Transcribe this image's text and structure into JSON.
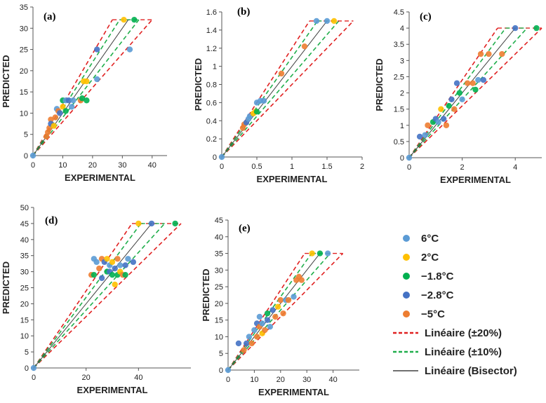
{
  "legend": {
    "entries": [
      {
        "label": "6°C",
        "kind": "dot",
        "color": "#5b9bd5"
      },
      {
        "label": "2°C",
        "kind": "dot",
        "color": "#ffc000"
      },
      {
        "label": "−1.8°C",
        "kind": "dot",
        "color": "#00b050"
      },
      {
        "label": "−2.8°C",
        "kind": "dot",
        "color": "#4472c4"
      },
      {
        "label": "−5°C",
        "kind": "dot",
        "color": "#ed7d31"
      },
      {
        "label": "Linéaire (±20%)",
        "kind": "dash",
        "color": "#e02020"
      },
      {
        "label": "Linéaire (±10%)",
        "kind": "dash",
        "color": "#1fae4b"
      },
      {
        "label": "Linéaire (Bisector)",
        "kind": "solid",
        "color": "#404040"
      }
    ]
  },
  "chart_data": [
    {
      "id": "a",
      "type": "scatter",
      "panel_label": "(a)",
      "xlabel": "EXPERIMENTAL",
      "ylabel": "PREDICTED",
      "xlim": [
        0,
        45
      ],
      "ylim": [
        0,
        35
      ],
      "xticks": [
        0,
        10,
        20,
        30,
        40
      ],
      "yticks": [
        0,
        5,
        10,
        15,
        20,
        25,
        30,
        35
      ],
      "xtick_labels": [
        "0",
        "10",
        "20",
        "30",
        "40"
      ],
      "ytick_labels": [
        "0",
        "5",
        "10",
        "15",
        "20",
        "25",
        "30",
        "35"
      ],
      "line_end": 32,
      "points": [
        {
          "x": 0,
          "y": 0,
          "series": "6°C"
        },
        {
          "x": 4.5,
          "y": 4.5,
          "series": "-5°C"
        },
        {
          "x": 5,
          "y": 5.5,
          "series": "-5°C"
        },
        {
          "x": 5.5,
          "y": 6.5,
          "series": "-5°C"
        },
        {
          "x": 6,
          "y": 8.5,
          "series": "-5°C"
        },
        {
          "x": 6,
          "y": 7.5,
          "series": "-2.8°C"
        },
        {
          "x": 7,
          "y": 7,
          "series": "2°C"
        },
        {
          "x": 7.5,
          "y": 9,
          "series": "-5°C"
        },
        {
          "x": 8,
          "y": 11,
          "series": "6°C"
        },
        {
          "x": 8.5,
          "y": 10.5,
          "series": "-5°C"
        },
        {
          "x": 9,
          "y": 10,
          "series": "-2.8°C"
        },
        {
          "x": 10,
          "y": 13,
          "series": "-1.8°C"
        },
        {
          "x": 10,
          "y": 11.5,
          "series": "2°C"
        },
        {
          "x": 11,
          "y": 13,
          "series": "6°C"
        },
        {
          "x": 11,
          "y": 10.5,
          "series": "-1.8°C"
        },
        {
          "x": 12,
          "y": 13,
          "series": "-2.8°C"
        },
        {
          "x": 13,
          "y": 11.5,
          "series": "6°C"
        },
        {
          "x": 13.5,
          "y": 13,
          "series": "6°C"
        },
        {
          "x": 16,
          "y": 13,
          "series": "-5°C"
        },
        {
          "x": 16.5,
          "y": 13.5,
          "series": "-1.8°C"
        },
        {
          "x": 17,
          "y": 17.5,
          "series": "2°C"
        },
        {
          "x": 18,
          "y": 17.5,
          "series": "2°C"
        },
        {
          "x": 18,
          "y": 13,
          "series": "-1.8°C"
        },
        {
          "x": 21.5,
          "y": 18,
          "series": "6°C"
        },
        {
          "x": 21.5,
          "y": 25,
          "series": "-2.8°C"
        },
        {
          "x": 32.5,
          "y": 25,
          "series": "6°C"
        },
        {
          "x": 30.5,
          "y": 32,
          "series": "2°C"
        },
        {
          "x": 34,
          "y": 32,
          "series": "-1.8°C"
        }
      ]
    },
    {
      "id": "b",
      "type": "scatter",
      "panel_label": "(b)",
      "xlabel": "EXPERIMENTAL",
      "ylabel": "PREDICTED",
      "xlim": [
        0,
        2
      ],
      "ylim": [
        0,
        1.6
      ],
      "xticks": [
        0,
        0.5,
        1,
        1.5,
        2
      ],
      "yticks": [
        0,
        0.2,
        0.4,
        0.6,
        0.8,
        1,
        1.2,
        1.4,
        1.6
      ],
      "xtick_labels": [
        "0",
        "0.5",
        "1",
        "1.5",
        "2"
      ],
      "ytick_labels": [
        "0",
        "0.2",
        "0.4",
        "0.6",
        "0.8",
        "1",
        "1.2",
        "1.4",
        "1.6"
      ],
      "line_end": 1.5,
      "points": [
        {
          "x": 0,
          "y": 0,
          "series": "6°C"
        },
        {
          "x": 0.3,
          "y": 0.32,
          "series": "-5°C"
        },
        {
          "x": 0.32,
          "y": 0.36,
          "series": "-5°C"
        },
        {
          "x": 0.35,
          "y": 0.38,
          "series": "-2.8°C"
        },
        {
          "x": 0.38,
          "y": 0.42,
          "series": "6°C"
        },
        {
          "x": 0.4,
          "y": 0.45,
          "series": "6°C"
        },
        {
          "x": 0.45,
          "y": 0.48,
          "series": "2°C"
        },
        {
          "x": 0.48,
          "y": 0.5,
          "series": "2°C"
        },
        {
          "x": 0.5,
          "y": 0.5,
          "series": "-1.8°C"
        },
        {
          "x": 0.5,
          "y": 0.6,
          "series": "6°C"
        },
        {
          "x": 0.55,
          "y": 0.62,
          "series": "6°C"
        },
        {
          "x": 0.6,
          "y": 0.62,
          "series": "6°C"
        },
        {
          "x": 0.85,
          "y": 0.92,
          "series": "-5°C"
        },
        {
          "x": 1.18,
          "y": 1.22,
          "series": "-5°C"
        },
        {
          "x": 1.35,
          "y": 1.5,
          "series": "6°C"
        },
        {
          "x": 1.5,
          "y": 1.5,
          "series": "6°C"
        },
        {
          "x": 1.6,
          "y": 1.5,
          "series": "2°C"
        }
      ]
    },
    {
      "id": "c",
      "type": "scatter",
      "panel_label": "(c)",
      "xlabel": "EXPERIMENTAL",
      "ylabel": "PREDICTED",
      "xlim": [
        0,
        5
      ],
      "ylim": [
        0,
        4.5
      ],
      "xticks": [
        0,
        2,
        4
      ],
      "yticks": [
        0,
        0.5,
        1,
        1.5,
        2,
        2.5,
        3,
        3.5,
        4,
        4.5
      ],
      "xtick_labels": [
        "0",
        "2",
        "4"
      ],
      "ytick_labels": [
        "0",
        "0.5",
        "1",
        "1.5",
        "2",
        "2.5",
        "3",
        "3.5",
        "4",
        "4.5"
      ],
      "line_end": 4,
      "points": [
        {
          "x": 0,
          "y": 0,
          "series": "6°C"
        },
        {
          "x": 0.4,
          "y": 0.65,
          "series": "-2.8°C"
        },
        {
          "x": 0.6,
          "y": 0.7,
          "series": "6°C"
        },
        {
          "x": 0.7,
          "y": 1,
          "series": "-5°C"
        },
        {
          "x": 0.9,
          "y": 1.1,
          "series": "-1.8°C"
        },
        {
          "x": 1,
          "y": 1.2,
          "series": "-2.8°C"
        },
        {
          "x": 1.1,
          "y": 1.1,
          "series": "6°C"
        },
        {
          "x": 1.2,
          "y": 1.5,
          "series": "2°C"
        },
        {
          "x": 1.3,
          "y": 1.2,
          "series": "-2.8°C"
        },
        {
          "x": 1.4,
          "y": 1,
          "series": "-5°C"
        },
        {
          "x": 1.5,
          "y": 1.6,
          "series": "-1.8°C"
        },
        {
          "x": 1.6,
          "y": 1.8,
          "series": "-2.8°C"
        },
        {
          "x": 1.7,
          "y": 1.5,
          "series": "-5°C"
        },
        {
          "x": 1.8,
          "y": 2.3,
          "series": "-2.8°C"
        },
        {
          "x": 1.9,
          "y": 2,
          "series": "-1.8°C"
        },
        {
          "x": 2,
          "y": 1.8,
          "series": "6°C"
        },
        {
          "x": 2.2,
          "y": 2.3,
          "series": "-5°C"
        },
        {
          "x": 2.4,
          "y": 2.3,
          "series": "-5°C"
        },
        {
          "x": 2.5,
          "y": 2.1,
          "series": "-1.8°C"
        },
        {
          "x": 2.6,
          "y": 2.4,
          "series": "6°C"
        },
        {
          "x": 2.8,
          "y": 2.4,
          "series": "-2.8°C"
        },
        {
          "x": 2.7,
          "y": 3.2,
          "series": "-5°C"
        },
        {
          "x": 3,
          "y": 3.2,
          "series": "-5°C"
        },
        {
          "x": 3.5,
          "y": 3.2,
          "series": "-5°C"
        },
        {
          "x": 4,
          "y": 4,
          "series": "-2.8°C"
        },
        {
          "x": 4.8,
          "y": 4,
          "series": "-1.8°C"
        }
      ]
    },
    {
      "id": "d",
      "type": "scatter",
      "panel_label": "(d)",
      "xlabel": "EXPERIMENTAL",
      "ylabel": "PREDICTED",
      "xlim": [
        0,
        60
      ],
      "ylim": [
        0,
        50
      ],
      "xticks": [
        0,
        20,
        40
      ],
      "yticks": [
        0,
        5,
        10,
        15,
        20,
        25,
        30,
        35,
        40,
        45,
        50
      ],
      "xtick_labels": [
        "0",
        "20",
        "40"
      ],
      "ytick_labels": [
        "0",
        "5",
        "10",
        "15",
        "20",
        "25",
        "30",
        "35",
        "40",
        "45",
        "50"
      ],
      "line_end": 45,
      "points": [
        {
          "x": 0,
          "y": 0,
          "series": "6°C"
        },
        {
          "x": 22,
          "y": 29,
          "series": "-5°C"
        },
        {
          "x": 23,
          "y": 29,
          "series": "-1.8°C"
        },
        {
          "x": 23,
          "y": 34,
          "series": "6°C"
        },
        {
          "x": 24,
          "y": 33,
          "series": "6°C"
        },
        {
          "x": 25,
          "y": 31,
          "series": "-5°C"
        },
        {
          "x": 26,
          "y": 34,
          "series": "-5°C"
        },
        {
          "x": 26,
          "y": 28,
          "series": "-2.8°C"
        },
        {
          "x": 27,
          "y": 33,
          "series": "-2.8°C"
        },
        {
          "x": 28,
          "y": 30,
          "series": "-1.8°C"
        },
        {
          "x": 28,
          "y": 34,
          "series": "2°C"
        },
        {
          "x": 29,
          "y": 32,
          "series": "6°C"
        },
        {
          "x": 29,
          "y": 30,
          "series": "-2.8°C"
        },
        {
          "x": 30,
          "y": 33,
          "series": "2°C"
        },
        {
          "x": 30,
          "y": 29,
          "series": "-1.8°C"
        },
        {
          "x": 31,
          "y": 31,
          "series": "-2.8°C"
        },
        {
          "x": 31,
          "y": 26,
          "series": "2°C"
        },
        {
          "x": 32,
          "y": 34,
          "series": "-5°C"
        },
        {
          "x": 32,
          "y": 29,
          "series": "-1.8°C"
        },
        {
          "x": 33,
          "y": 32,
          "series": "6°C"
        },
        {
          "x": 33,
          "y": 30,
          "series": "2°C"
        },
        {
          "x": 34,
          "y": 29,
          "series": "-5°C"
        },
        {
          "x": 35,
          "y": 32,
          "series": "-2.8°C"
        },
        {
          "x": 35,
          "y": 29,
          "series": "-1.8°C"
        },
        {
          "x": 36,
          "y": 34,
          "series": "6°C"
        },
        {
          "x": 38,
          "y": 33,
          "series": "-2.8°C"
        },
        {
          "x": 40,
          "y": 45,
          "series": "2°C"
        },
        {
          "x": 45,
          "y": 45,
          "series": "-2.8°C"
        },
        {
          "x": 54,
          "y": 45,
          "series": "-1.8°C"
        }
      ]
    },
    {
      "id": "e",
      "type": "scatter",
      "panel_label": "(e)",
      "xlabel": "EXPERIMENTAL",
      "ylabel": "PREDICTED",
      "xlim": [
        0,
        50
      ],
      "ylim": [
        0,
        45
      ],
      "xticks": [
        0,
        10,
        20,
        30,
        40
      ],
      "yticks": [
        0,
        5,
        10,
        15,
        20,
        25,
        30,
        35,
        40,
        45
      ],
      "xtick_labels": [
        "0",
        "10",
        "20",
        "30",
        "40"
      ],
      "ytick_labels": [
        "0",
        "5",
        "10",
        "15",
        "20",
        "25",
        "30",
        "35",
        "40",
        "45"
      ],
      "line_end": 35,
      "points": [
        {
          "x": 0,
          "y": 0,
          "series": "6°C"
        },
        {
          "x": 4,
          "y": 8,
          "series": "-2.8°C"
        },
        {
          "x": 6,
          "y": 6,
          "series": "-5°C"
        },
        {
          "x": 7,
          "y": 8,
          "series": "-2.8°C"
        },
        {
          "x": 8,
          "y": 10,
          "series": "6°C"
        },
        {
          "x": 9,
          "y": 8,
          "series": "-5°C"
        },
        {
          "x": 10,
          "y": 12,
          "series": "6°C"
        },
        {
          "x": 11,
          "y": 10,
          "series": "-5°C"
        },
        {
          "x": 11,
          "y": 14,
          "series": "-2.8°C"
        },
        {
          "x": 12,
          "y": 16,
          "series": "6°C"
        },
        {
          "x": 12,
          "y": 13,
          "series": "-5°C"
        },
        {
          "x": 13,
          "y": 11,
          "series": "2°C"
        },
        {
          "x": 13,
          "y": 14,
          "series": "6°C"
        },
        {
          "x": 14,
          "y": 12,
          "series": "-5°C"
        },
        {
          "x": 15,
          "y": 15,
          "series": "-2.8°C"
        },
        {
          "x": 15,
          "y": 17,
          "series": "-1.8°C"
        },
        {
          "x": 16,
          "y": 13,
          "series": "6°C"
        },
        {
          "x": 17,
          "y": 18,
          "series": "-2.8°C"
        },
        {
          "x": 18,
          "y": 16,
          "series": "-5°C"
        },
        {
          "x": 19,
          "y": 19,
          "series": "2°C"
        },
        {
          "x": 20,
          "y": 21,
          "series": "-5°C"
        },
        {
          "x": 21,
          "y": 17,
          "series": "-5°C"
        },
        {
          "x": 22,
          "y": 21,
          "series": "6°C"
        },
        {
          "x": 23,
          "y": 21,
          "series": "-5°C"
        },
        {
          "x": 25,
          "y": 22,
          "series": "6°C"
        },
        {
          "x": 26,
          "y": 27,
          "series": "-5°C"
        },
        {
          "x": 27,
          "y": 28,
          "series": "-5°C"
        },
        {
          "x": 28,
          "y": 27,
          "series": "-5°C"
        },
        {
          "x": 32,
          "y": 35,
          "series": "2°C"
        },
        {
          "x": 35,
          "y": 35,
          "series": "-1.8°C"
        },
        {
          "x": 38,
          "y": 35,
          "series": "6°C"
        }
      ]
    }
  ]
}
